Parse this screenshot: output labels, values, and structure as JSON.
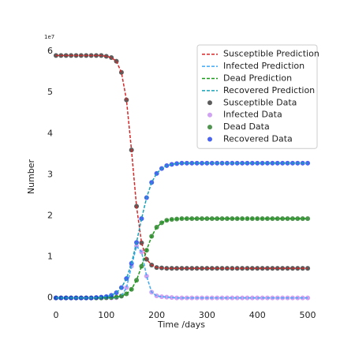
{
  "chart_data": {
    "type": "line",
    "xlabel": "Time /days",
    "ylabel": "Number",
    "y_offset_label": "1e7",
    "x": [
      0,
      10,
      20,
      30,
      40,
      50,
      60,
      70,
      80,
      90,
      100,
      110,
      120,
      130,
      140,
      150,
      160,
      170,
      180,
      190,
      200,
      210,
      220,
      230,
      240,
      250,
      260,
      270,
      280,
      290,
      300,
      310,
      320,
      330,
      340,
      350,
      360,
      370,
      380,
      390,
      400,
      410,
      420,
      430,
      440,
      450,
      460,
      470,
      480,
      490,
      500
    ],
    "xlim": [
      -25,
      525
    ],
    "xticks": [
      0,
      100,
      200,
      300,
      400,
      500
    ],
    "ylim": [
      -0.295,
      6.195
    ],
    "yticks": [
      0,
      1,
      2,
      3,
      4,
      5,
      6
    ],
    "legend": "upper right",
    "series": [
      {
        "name": "Susceptible Prediction",
        "kind": "dashed",
        "color": "#d62728",
        "values": [
          5.9,
          5.9,
          5.9,
          5.9,
          5.9,
          5.9,
          5.9,
          5.9,
          5.9,
          5.9,
          5.88,
          5.85,
          5.76,
          5.49,
          4.82,
          3.6,
          2.23,
          1.34,
          0.94,
          0.8,
          0.74,
          0.73,
          0.72,
          0.72,
          0.72,
          0.72,
          0.72,
          0.72,
          0.72,
          0.72,
          0.72,
          0.72,
          0.72,
          0.72,
          0.72,
          0.72,
          0.72,
          0.72,
          0.72,
          0.72,
          0.72,
          0.72,
          0.72,
          0.72,
          0.72,
          0.72,
          0.72,
          0.72,
          0.72,
          0.72,
          0.72
        ]
      },
      {
        "name": "Infected Prediction",
        "kind": "dashed",
        "color": "#3fa9f5",
        "values": [
          0,
          0,
          0,
          0,
          0,
          0,
          0,
          0,
          0,
          0,
          0,
          0,
          0.004,
          0.045,
          0.25,
          0.77,
          1.26,
          1.12,
          0.53,
          0.14,
          0.05,
          0.03,
          0.02,
          0.01,
          0,
          0,
          0,
          0,
          0,
          0,
          0,
          0,
          0,
          0,
          0,
          0,
          0,
          0,
          0,
          0,
          0,
          0,
          0,
          0,
          0,
          0,
          0,
          0,
          0,
          0,
          0
        ]
      },
      {
        "name": "Dead Prediction",
        "kind": "dashed",
        "color": "#1a9a1a",
        "values": [
          0,
          0,
          0,
          0,
          0,
          0,
          0,
          0,
          0,
          0,
          0.004,
          0.009,
          0.02,
          0.044,
          0.099,
          0.21,
          0.43,
          0.77,
          1.16,
          1.5,
          1.72,
          1.83,
          1.89,
          1.91,
          1.92,
          1.93,
          1.93,
          1.93,
          1.93,
          1.93,
          1.93,
          1.93,
          1.93,
          1.93,
          1.93,
          1.93,
          1.93,
          1.93,
          1.93,
          1.93,
          1.93,
          1.93,
          1.93,
          1.93,
          1.93,
          1.93,
          1.93,
          1.93,
          1.93,
          1.93,
          1.93
        ]
      },
      {
        "name": "Recovered Prediction",
        "kind": "dashed",
        "color": "#17a2b8",
        "values": [
          0,
          0,
          0,
          0,
          0,
          0,
          0,
          0,
          0.01,
          0.02,
          0.031,
          0.063,
          0.127,
          0.25,
          0.47,
          0.84,
          1.35,
          1.93,
          2.44,
          2.81,
          3.03,
          3.15,
          3.22,
          3.25,
          3.27,
          3.28,
          3.28,
          3.28,
          3.28,
          3.28,
          3.28,
          3.28,
          3.28,
          3.28,
          3.28,
          3.28,
          3.28,
          3.28,
          3.28,
          3.28,
          3.28,
          3.28,
          3.28,
          3.28,
          3.28,
          3.28,
          3.28,
          3.28,
          3.28,
          3.28,
          3.28
        ]
      },
      {
        "name": "Susceptible Data",
        "kind": "dots",
        "color": "#333333",
        "values": [
          5.9,
          5.9,
          5.9,
          5.9,
          5.9,
          5.9,
          5.9,
          5.9,
          5.9,
          5.9,
          5.88,
          5.85,
          5.76,
          5.49,
          4.82,
          3.6,
          2.23,
          1.34,
          0.94,
          0.8,
          0.74,
          0.73,
          0.72,
          0.72,
          0.72,
          0.72,
          0.72,
          0.72,
          0.72,
          0.72,
          0.72,
          0.72,
          0.72,
          0.72,
          0.72,
          0.72,
          0.72,
          0.72,
          0.72,
          0.72,
          0.72,
          0.72,
          0.72,
          0.72,
          0.72,
          0.72,
          0.72,
          0.72,
          0.72,
          0.72,
          0.72
        ]
      },
      {
        "name": "Infected Data",
        "kind": "dots",
        "color": "#c58af0",
        "values": [
          0,
          0,
          0,
          0,
          0,
          0,
          0,
          0,
          0,
          0,
          0,
          0,
          0.004,
          0.045,
          0.25,
          0.77,
          1.26,
          1.12,
          0.53,
          0.14,
          0.05,
          0.03,
          0.02,
          0.01,
          0,
          0,
          0,
          0,
          0,
          0,
          0,
          0,
          0,
          0,
          0,
          0,
          0,
          0,
          0,
          0,
          0,
          0,
          0,
          0,
          0,
          0,
          0,
          0,
          0,
          0,
          0
        ]
      },
      {
        "name": "Dead Data",
        "kind": "dots",
        "color": "#237a23",
        "values": [
          0,
          0,
          0,
          0,
          0,
          0,
          0,
          0,
          0,
          0,
          0.004,
          0.009,
          0.02,
          0.044,
          0.099,
          0.21,
          0.43,
          0.77,
          1.16,
          1.5,
          1.72,
          1.83,
          1.89,
          1.91,
          1.92,
          1.93,
          1.93,
          1.93,
          1.93,
          1.93,
          1.93,
          1.93,
          1.93,
          1.93,
          1.93,
          1.93,
          1.93,
          1.93,
          1.93,
          1.93,
          1.93,
          1.93,
          1.93,
          1.93,
          1.93,
          1.93,
          1.93,
          1.93,
          1.93,
          1.93,
          1.93
        ]
      },
      {
        "name": "Recovered Data",
        "kind": "dots",
        "color": "#1c3cf0",
        "values": [
          0,
          0,
          0,
          0,
          0,
          0,
          0,
          0,
          0.01,
          0.02,
          0.031,
          0.063,
          0.127,
          0.25,
          0.47,
          0.84,
          1.35,
          1.93,
          2.44,
          2.81,
          3.03,
          3.15,
          3.22,
          3.25,
          3.27,
          3.28,
          3.28,
          3.28,
          3.28,
          3.28,
          3.28,
          3.28,
          3.28,
          3.28,
          3.28,
          3.28,
          3.28,
          3.28,
          3.28,
          3.28,
          3.28,
          3.28,
          3.28,
          3.28,
          3.28,
          3.28,
          3.28,
          3.28,
          3.28,
          3.28,
          3.28
        ]
      }
    ]
  }
}
